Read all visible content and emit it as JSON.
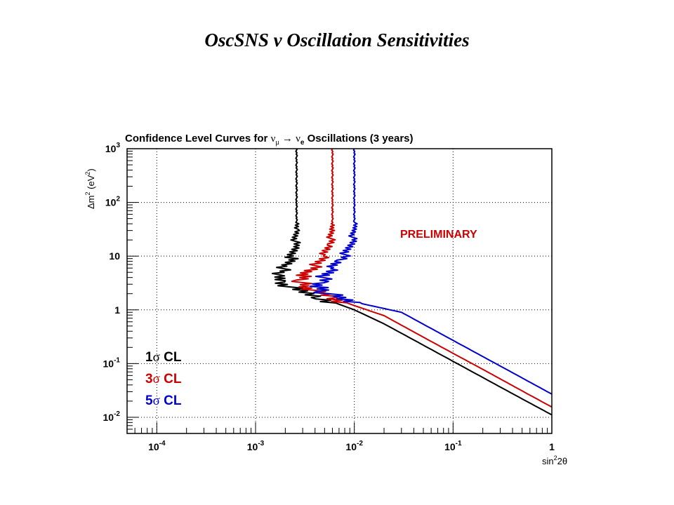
{
  "slide": {
    "title": "OscSNS  ν Oscillation Sensitivities"
  },
  "chart_data": {
    "type": "line",
    "title": {
      "prefix": "Confidence Level Curves for ",
      "nu_mu": "ν",
      "mu_sub": "μ",
      "arrow": " → ",
      "nu_e": "ν",
      "e_sub": "e",
      "suffix": " Oscillations (3 years)"
    },
    "xlabel": {
      "base": "sin",
      "sup": "2",
      "rest": "2θ"
    },
    "ylabel": {
      "base": "Δm",
      "sup": "2",
      "unit_open": " (eV",
      "unit_sup": "2",
      "unit_close": ")"
    },
    "x_scale": "log",
    "y_scale": "log",
    "xlim": [
      5e-05,
      1
    ],
    "ylim": [
      0.005,
      1000
    ],
    "grid": true,
    "x_ticks": [
      {
        "value": 0.0001,
        "mantissa": "10",
        "exp": "-4"
      },
      {
        "value": 0.001,
        "mantissa": "10",
        "exp": "-3"
      },
      {
        "value": 0.01,
        "mantissa": "10",
        "exp": "-2"
      },
      {
        "value": 0.1,
        "mantissa": "10",
        "exp": "-1"
      },
      {
        "value": 1,
        "mantissa": "1",
        "exp": ""
      }
    ],
    "y_ticks": [
      {
        "value": 0.01,
        "mantissa": "10",
        "exp": "-2"
      },
      {
        "value": 0.1,
        "mantissa": "10",
        "exp": "-1"
      },
      {
        "value": 1,
        "mantissa": "1",
        "exp": ""
      },
      {
        "value": 10,
        "mantissa": "10",
        "exp": ""
      },
      {
        "value": 100,
        "mantissa": "10",
        "exp": "2"
      },
      {
        "value": 1000,
        "mantissa": "10",
        "exp": "3"
      }
    ],
    "annotation": {
      "text": "PRELIMINARY",
      "color": "#cc0000"
    },
    "legend_position": "bottom-left",
    "series": [
      {
        "name": "1σ CL",
        "num": "1",
        "sym": "σ",
        "cl": " CL",
        "color": "#000000",
        "points": [
          [
            1,
            0.0111
          ],
          [
            0.5,
            0.022
          ],
          [
            0.2,
            0.055
          ],
          [
            0.1,
            0.11
          ],
          [
            0.05,
            0.22
          ],
          [
            0.02,
            0.55
          ],
          [
            0.01,
            1.0
          ],
          [
            0.005,
            1.6
          ],
          [
            0.0025,
            2.4
          ],
          [
            0.0018,
            3.3
          ],
          [
            0.0016,
            4.3
          ],
          [
            0.0018,
            5
          ],
          [
            0.002,
            6.5
          ],
          [
            0.0023,
            9
          ],
          [
            0.0025,
            15
          ],
          [
            0.0026,
            30
          ],
          [
            0.0026,
            100
          ],
          [
            0.0026,
            1000
          ]
        ]
      },
      {
        "name": "3σ CL",
        "num": "3",
        "sym": "σ",
        "cl": " CL",
        "color": "#cc0000",
        "points": [
          [
            1,
            0.0155
          ],
          [
            0.5,
            0.031
          ],
          [
            0.2,
            0.078
          ],
          [
            0.1,
            0.155
          ],
          [
            0.05,
            0.31
          ],
          [
            0.02,
            0.78
          ],
          [
            0.01,
            1.2
          ],
          [
            0.006,
            1.7
          ],
          [
            0.004,
            2.2
          ],
          [
            0.003,
            2.8
          ],
          [
            0.0029,
            3.4
          ],
          [
            0.0031,
            4.2
          ],
          [
            0.0035,
            5.4
          ],
          [
            0.0042,
            7
          ],
          [
            0.005,
            10
          ],
          [
            0.0056,
            16
          ],
          [
            0.006,
            30
          ],
          [
            0.006,
            100
          ],
          [
            0.006,
            1000
          ]
        ]
      },
      {
        "name": "5σ CL",
        "num": "5",
        "sym": "σ",
        "cl": " CL",
        "color": "#0000cc",
        "points": [
          [
            1,
            0.027
          ],
          [
            0.5,
            0.054
          ],
          [
            0.2,
            0.135
          ],
          [
            0.1,
            0.27
          ],
          [
            0.05,
            0.54
          ],
          [
            0.03,
            0.9
          ],
          [
            0.012,
            1.3
          ],
          [
            0.007,
            1.7
          ],
          [
            0.005,
            2.1
          ],
          [
            0.0045,
            2.6
          ],
          [
            0.0045,
            3.2
          ],
          [
            0.005,
            4.2
          ],
          [
            0.006,
            5.8
          ],
          [
            0.007,
            8
          ],
          [
            0.0085,
            12
          ],
          [
            0.0095,
            20
          ],
          [
            0.01,
            30
          ],
          [
            0.01,
            100
          ],
          [
            0.01,
            1000
          ]
        ]
      }
    ]
  }
}
